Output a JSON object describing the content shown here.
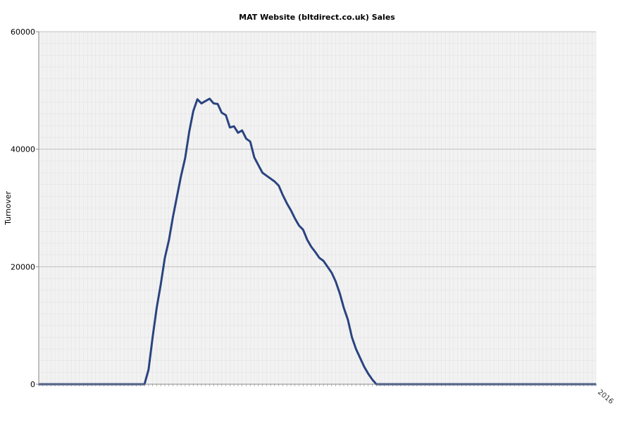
{
  "chart_data": {
    "type": "line",
    "title": "MAT Website (bltdirect.co.uk) Sales",
    "xlabel": "",
    "ylabel": "Turnover",
    "ylim": [
      0,
      60000
    ],
    "yticks": [
      0,
      20000,
      40000,
      60000
    ],
    "grid": true,
    "legend": "none",
    "x_tick_note": "Period labels along the x axis are rotated and overlapping; only the last one is readable.",
    "last_x_label": "2016",
    "colors": {
      "line": "#2a4480",
      "plot_background": "#f2f2f2",
      "gridline": "#c0c0c0",
      "minor_gridline": "#e0e0e0"
    },
    "series": [
      {
        "values": [
          0,
          0,
          0,
          0,
          0,
          0,
          0,
          0,
          0,
          0,
          0,
          0,
          0,
          0,
          0,
          0,
          0,
          0,
          0,
          0,
          0,
          0,
          0,
          0,
          0,
          0,
          0,
          2500,
          8000,
          13000,
          17000,
          21500,
          24500,
          28500,
          32000,
          35500,
          38500,
          43000,
          46500,
          48500,
          47800,
          48200,
          48600,
          47800,
          47700,
          46200,
          45800,
          43700,
          43900,
          42800,
          43200,
          41800,
          41300,
          38600,
          37300,
          36000,
          35500,
          35000,
          34500,
          33800,
          32200,
          30800,
          29600,
          28200,
          27000,
          26300,
          24600,
          23400,
          22500,
          21500,
          21000,
          20000,
          19000,
          17500,
          15500,
          13000,
          11000,
          8000,
          6000,
          4500,
          3000,
          1800,
          800,
          0,
          0,
          0,
          0,
          0,
          0,
          0,
          0,
          0,
          0,
          0,
          0,
          0,
          0,
          0,
          0,
          0,
          0,
          0,
          0,
          0,
          0,
          0,
          0,
          0,
          0,
          0,
          0,
          0,
          0,
          0,
          0,
          0,
          0,
          0,
          0,
          0,
          0,
          0,
          0,
          0,
          0,
          0,
          0,
          0,
          0,
          0,
          0,
          0,
          0,
          0,
          0,
          0,
          0,
          0
        ]
      }
    ]
  }
}
